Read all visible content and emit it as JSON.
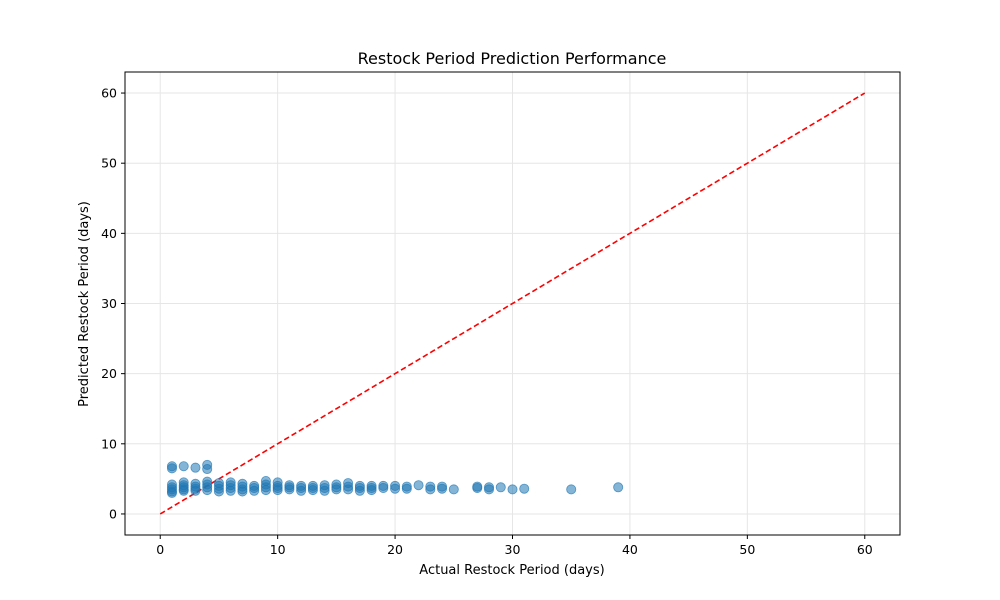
{
  "chart_data": {
    "type": "scatter",
    "title": "Restock Period Prediction Performance",
    "xlabel": "Actual Restock Period (days)",
    "ylabel": "Predicted Restock Period (days)",
    "xlim": [
      -3,
      63
    ],
    "ylim": [
      -3,
      63
    ],
    "xticks": [
      0,
      10,
      20,
      30,
      40,
      50,
      60
    ],
    "yticks": [
      0,
      10,
      20,
      30,
      40,
      50,
      60
    ],
    "grid": true,
    "point_color": "#1f77b4",
    "reference_line": {
      "x": [
        0,
        60
      ],
      "y": [
        0,
        60
      ],
      "color": "#ff0000",
      "style": "dashed"
    },
    "points": [
      [
        1,
        6.8
      ],
      [
        1,
        6.5
      ],
      [
        2,
        6.8
      ],
      [
        3,
        6.6
      ],
      [
        4,
        7.0
      ],
      [
        4,
        6.4
      ],
      [
        1,
        4.2
      ],
      [
        1,
        3.8
      ],
      [
        1,
        3.5
      ],
      [
        1,
        3.2
      ],
      [
        1,
        3.0
      ],
      [
        2,
        4.5
      ],
      [
        2,
        4.1
      ],
      [
        2,
        3.8
      ],
      [
        2,
        3.5
      ],
      [
        2,
        3.3
      ],
      [
        3,
        4.3
      ],
      [
        3,
        3.9
      ],
      [
        3,
        3.6
      ],
      [
        3,
        3.3
      ],
      [
        4,
        4.6
      ],
      [
        4,
        4.2
      ],
      [
        4,
        3.8
      ],
      [
        4,
        3.4
      ],
      [
        5,
        4.4
      ],
      [
        5,
        4.0
      ],
      [
        5,
        3.6
      ],
      [
        5,
        3.2
      ],
      [
        6,
        4.5
      ],
      [
        6,
        4.1
      ],
      [
        6,
        3.7
      ],
      [
        6,
        3.3
      ],
      [
        7,
        4.3
      ],
      [
        7,
        3.9
      ],
      [
        7,
        3.5
      ],
      [
        7,
        3.2
      ],
      [
        8,
        4.0
      ],
      [
        8,
        3.7
      ],
      [
        8,
        3.3
      ],
      [
        9,
        4.7
      ],
      [
        9,
        4.2
      ],
      [
        9,
        3.8
      ],
      [
        9,
        3.4
      ],
      [
        10,
        4.5
      ],
      [
        10,
        4.0
      ],
      [
        10,
        3.7
      ],
      [
        10,
        3.4
      ],
      [
        11,
        4.1
      ],
      [
        11,
        3.8
      ],
      [
        11,
        3.5
      ],
      [
        12,
        4.0
      ],
      [
        12,
        3.7
      ],
      [
        12,
        3.3
      ],
      [
        13,
        4.0
      ],
      [
        13,
        3.7
      ],
      [
        13,
        3.4
      ],
      [
        14,
        4.1
      ],
      [
        14,
        3.7
      ],
      [
        14,
        3.3
      ],
      [
        15,
        4.2
      ],
      [
        15,
        3.8
      ],
      [
        15,
        3.5
      ],
      [
        16,
        4.4
      ],
      [
        16,
        3.9
      ],
      [
        16,
        3.5
      ],
      [
        17,
        4.0
      ],
      [
        17,
        3.7
      ],
      [
        17,
        3.3
      ],
      [
        18,
        4.0
      ],
      [
        18,
        3.7
      ],
      [
        18,
        3.4
      ],
      [
        19,
        4.0
      ],
      [
        19,
        3.7
      ],
      [
        20,
        4.0
      ],
      [
        20,
        3.6
      ],
      [
        21,
        3.9
      ],
      [
        21,
        3.6
      ],
      [
        22,
        4.1
      ],
      [
        23,
        3.9
      ],
      [
        23,
        3.5
      ],
      [
        24,
        3.9
      ],
      [
        24,
        3.6
      ],
      [
        25,
        3.5
      ],
      [
        27,
        3.9
      ],
      [
        27,
        3.7
      ],
      [
        28,
        3.8
      ],
      [
        28,
        3.5
      ],
      [
        29,
        3.8
      ],
      [
        30,
        3.5
      ],
      [
        31,
        3.6
      ],
      [
        35,
        3.5
      ],
      [
        39,
        3.8
      ]
    ]
  }
}
